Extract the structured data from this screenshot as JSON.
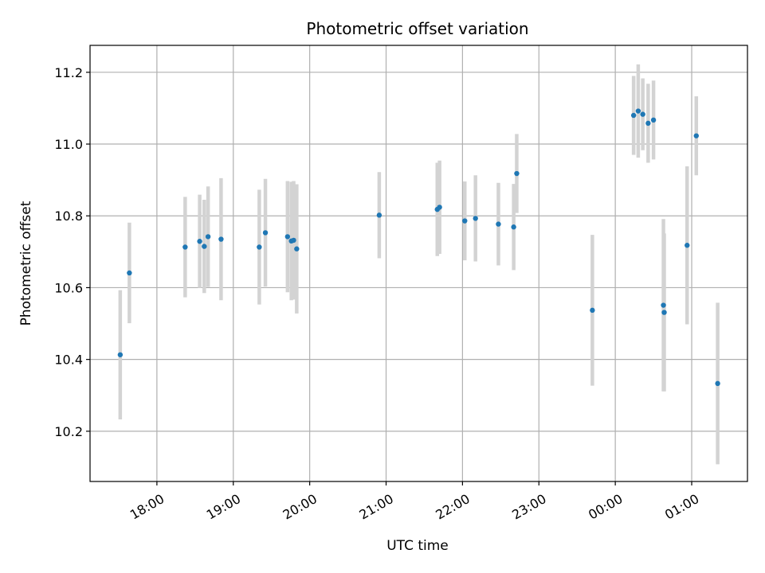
{
  "chart_data": {
    "type": "scatter",
    "title": "Photometric offset variation",
    "xlabel": "UTC time",
    "ylabel": "Photometric offset",
    "grid": true,
    "point_color": "#1f77b4",
    "errorbar_color": "#d3d3d3",
    "x_unit": "hours since 18:00 UTC",
    "xlim": [
      -0.875,
      7.73
    ],
    "ylim": [
      10.06,
      11.275
    ],
    "x_ticks": [
      {
        "value": 0,
        "label": "18:00"
      },
      {
        "value": 1,
        "label": "19:00"
      },
      {
        "value": 2,
        "label": "20:00"
      },
      {
        "value": 3,
        "label": "21:00"
      },
      {
        "value": 4,
        "label": "22:00"
      },
      {
        "value": 5,
        "label": "23:00"
      },
      {
        "value": 6,
        "label": "00:00"
      },
      {
        "value": 7,
        "label": "01:00"
      }
    ],
    "y_ticks": [
      {
        "value": 10.2,
        "label": "10.2"
      },
      {
        "value": 10.4,
        "label": "10.4"
      },
      {
        "value": 10.6,
        "label": "10.6"
      },
      {
        "value": 10.8,
        "label": "10.8"
      },
      {
        "value": 11.0,
        "label": "11.0"
      },
      {
        "value": 11.2,
        "label": "11.2"
      }
    ],
    "points": [
      {
        "x": -0.48,
        "y": 10.413,
        "err": 0.18
      },
      {
        "x": -0.36,
        "y": 10.641,
        "err": 0.14
      },
      {
        "x": 0.37,
        "y": 10.713,
        "err": 0.14
      },
      {
        "x": 0.56,
        "y": 10.729,
        "err": 0.13
      },
      {
        "x": 0.62,
        "y": 10.715,
        "err": 0.13
      },
      {
        "x": 0.67,
        "y": 10.742,
        "err": 0.14
      },
      {
        "x": 0.84,
        "y": 10.735,
        "err": 0.17
      },
      {
        "x": 1.34,
        "y": 10.713,
        "err": 0.16
      },
      {
        "x": 1.42,
        "y": 10.753,
        "err": 0.15
      },
      {
        "x": 1.71,
        "y": 10.742,
        "err": 0.155
      },
      {
        "x": 1.76,
        "y": 10.73,
        "err": 0.165
      },
      {
        "x": 1.79,
        "y": 10.732,
        "err": 0.165
      },
      {
        "x": 1.83,
        "y": 10.708,
        "err": 0.18
      },
      {
        "x": 2.91,
        "y": 10.802,
        "err": 0.12
      },
      {
        "x": 3.67,
        "y": 10.818,
        "err": 0.13
      },
      {
        "x": 3.7,
        "y": 10.824,
        "err": 0.13
      },
      {
        "x": 4.03,
        "y": 10.786,
        "err": 0.11
      },
      {
        "x": 4.17,
        "y": 10.793,
        "err": 0.12
      },
      {
        "x": 4.47,
        "y": 10.777,
        "err": 0.115
      },
      {
        "x": 4.67,
        "y": 10.769,
        "err": 0.12
      },
      {
        "x": 4.71,
        "y": 10.918,
        "err": 0.11
      },
      {
        "x": 5.7,
        "y": 10.537,
        "err": 0.21
      },
      {
        "x": 6.24,
        "y": 11.08,
        "err": 0.11
      },
      {
        "x": 6.3,
        "y": 11.092,
        "err": 0.13
      },
      {
        "x": 6.36,
        "y": 11.083,
        "err": 0.1
      },
      {
        "x": 6.43,
        "y": 11.058,
        "err": 0.11
      },
      {
        "x": 6.5,
        "y": 11.067,
        "err": 0.11
      },
      {
        "x": 6.63,
        "y": 10.551,
        "err": 0.24
      },
      {
        "x": 6.64,
        "y": 10.531,
        "err": 0.22
      },
      {
        "x": 6.94,
        "y": 10.718,
        "err": 0.22
      },
      {
        "x": 7.06,
        "y": 11.023,
        "err": 0.11
      },
      {
        "x": 7.34,
        "y": 10.333,
        "err": 0.225
      }
    ]
  }
}
